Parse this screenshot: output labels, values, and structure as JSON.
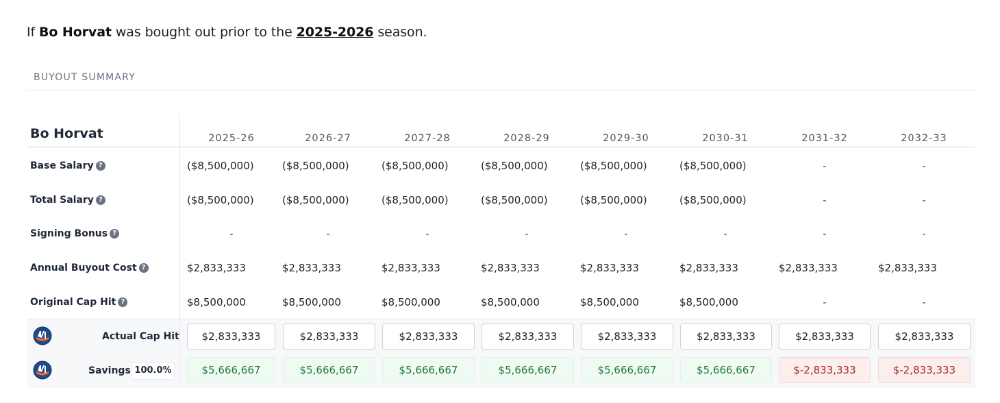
{
  "intro": {
    "prefix": "If ",
    "player": "Bo Horvat",
    "middle": " was bought out prior to the ",
    "season": "2025-2026",
    "suffix": " season."
  },
  "summary": {
    "title": "BUYOUT SUMMARY",
    "player_name": "Bo Horvat",
    "years": [
      "2025-26",
      "2026-27",
      "2027-28",
      "2028-29",
      "2029-30",
      "2030-31",
      "2031-32",
      "2032-33"
    ],
    "rows": [
      {
        "label": "Base Salary",
        "values": [
          "($8,500,000)",
          "($8,500,000)",
          "($8,500,000)",
          "($8,500,000)",
          "($8,500,000)",
          "($8,500,000)",
          "-",
          "-"
        ]
      },
      {
        "label": "Total Salary",
        "values": [
          "($8,500,000)",
          "($8,500,000)",
          "($8,500,000)",
          "($8,500,000)",
          "($8,500,000)",
          "($8,500,000)",
          "-",
          "-"
        ]
      },
      {
        "label": "Signing Bonus",
        "values": [
          "-",
          "-",
          "-",
          "-",
          "-",
          "-",
          "-",
          "-"
        ]
      },
      {
        "label": "Annual Buyout Cost",
        "values": [
          "$2,833,333",
          "$2,833,333",
          "$2,833,333",
          "$2,833,333",
          "$2,833,333",
          "$2,833,333",
          "$2,833,333",
          "$2,833,333"
        ]
      },
      {
        "label": "Original Cap Hit",
        "values": [
          "$8,500,000",
          "$8,500,000",
          "$8,500,000",
          "$8,500,000",
          "$8,500,000",
          "$8,500,000",
          "-",
          "-"
        ]
      }
    ],
    "actual_cap_hit": {
      "label": "Actual Cap Hit",
      "values": [
        "$2,833,333",
        "$2,833,333",
        "$2,833,333",
        "$2,833,333",
        "$2,833,333",
        "$2,833,333",
        "$2,833,333",
        "$2,833,333"
      ]
    },
    "savings": {
      "label": "Savings",
      "percent": "100.0%",
      "values": [
        "$5,666,667",
        "$5,666,667",
        "$5,666,667",
        "$5,666,667",
        "$5,666,667",
        "$5,666,667",
        "$-2,833,333",
        "$-2,833,333"
      ]
    }
  },
  "help_icon_glyph": "?",
  "colors": {
    "positive": "#1e7a3c",
    "negative": "#b02525",
    "team_blue": "#1f4a8c",
    "team_orange": "#f26924"
  }
}
